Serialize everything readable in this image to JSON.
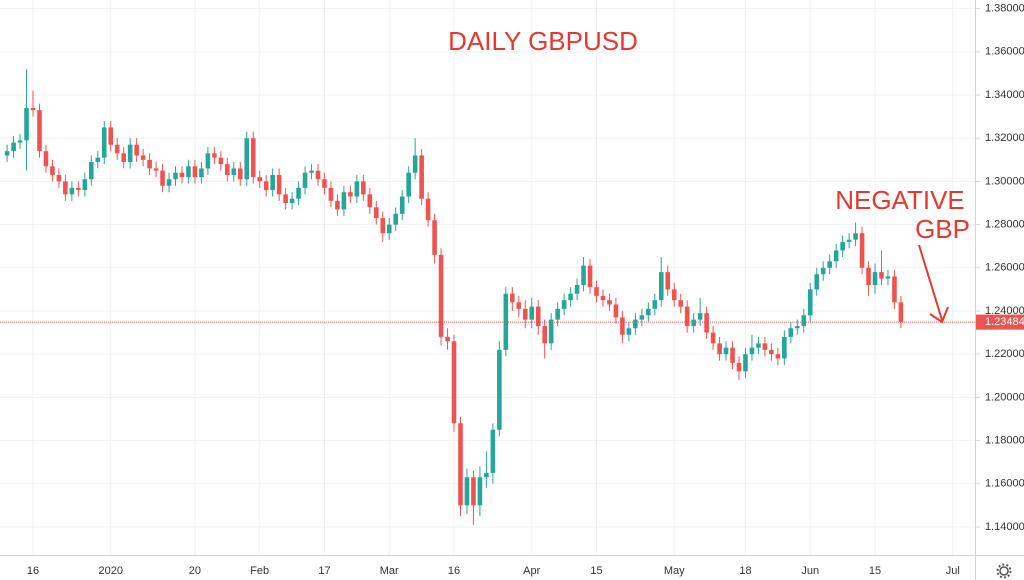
{
  "chart_data": {
    "type": "candlestick",
    "title": "DAILY GBPUSD",
    "annotation": [
      "NEGATIVE",
      "GBP"
    ],
    "up_color": "#26a69a",
    "down_color": "#ef5350",
    "grid": true,
    "ylim": [
      1.127,
      1.384
    ],
    "yticks": [
      {
        "value": 1.14,
        "label": "1.14000"
      },
      {
        "value": 1.16,
        "label": "1.16000"
      },
      {
        "value": 1.18,
        "label": "1.18000"
      },
      {
        "value": 1.2,
        "label": "1.20000"
      },
      {
        "value": 1.22,
        "label": "1.22000"
      },
      {
        "value": 1.24,
        "label": "1.24000"
      },
      {
        "value": 1.26,
        "label": "1.26000"
      },
      {
        "value": 1.28,
        "label": "1.28000"
      },
      {
        "value": 1.3,
        "label": "1.30000"
      },
      {
        "value": 1.32,
        "label": "1.32000"
      },
      {
        "value": 1.34,
        "label": "1.34000"
      },
      {
        "value": 1.36,
        "label": "1.36000"
      },
      {
        "value": 1.38,
        "label": "1.38000"
      }
    ],
    "categories": [
      null,
      null,
      null,
      null,
      "16",
      null,
      null,
      null,
      null,
      null,
      null,
      null,
      null,
      null,
      null,
      null,
      "2020",
      null,
      null,
      null,
      null,
      null,
      null,
      null,
      null,
      null,
      null,
      null,
      null,
      "20",
      null,
      null,
      null,
      null,
      null,
      null,
      null,
      null,
      null,
      "Feb",
      null,
      null,
      null,
      null,
      null,
      null,
      null,
      null,
      null,
      "17",
      null,
      null,
      null,
      null,
      null,
      null,
      null,
      null,
      null,
      "Mar",
      null,
      null,
      null,
      null,
      null,
      null,
      null,
      null,
      null,
      "16",
      null,
      null,
      null,
      null,
      null,
      null,
      null,
      null,
      null,
      null,
      null,
      "Apr",
      null,
      null,
      null,
      null,
      null,
      null,
      null,
      null,
      null,
      "15",
      null,
      null,
      null,
      null,
      null,
      null,
      null,
      null,
      null,
      null,
      null,
      "May",
      null,
      null,
      null,
      null,
      null,
      null,
      null,
      null,
      null,
      null,
      "18",
      null,
      null,
      null,
      null,
      null,
      null,
      null,
      null,
      null,
      "Jun",
      null,
      null,
      null,
      null,
      null,
      null,
      null,
      null,
      null,
      "15",
      null,
      null,
      null,
      null,
      null,
      null,
      null,
      null,
      null,
      null,
      null,
      "Jul"
    ],
    "open": [
      1.312,
      1.314,
      1.318,
      1.319,
      1.334,
      1.333,
      1.314,
      1.307,
      1.303,
      1.3,
      1.294,
      1.297,
      1.296,
      1.301,
      1.309,
      1.311,
      1.325,
      1.317,
      1.313,
      1.309,
      1.317,
      1.312,
      1.31,
      1.306,
      1.305,
      1.298,
      1.301,
      1.304,
      1.302,
      1.307,
      1.302,
      1.306,
      1.313,
      1.311,
      1.308,
      1.303,
      1.306,
      1.301,
      1.32,
      1.302,
      1.3,
      1.296,
      1.303,
      1.294,
      1.29,
      1.292,
      1.297,
      1.304,
      1.305,
      1.301,
      1.297,
      1.291,
      1.287,
      1.295,
      1.293,
      1.3,
      1.294,
      1.288,
      1.283,
      1.276,
      1.28,
      1.285,
      1.293,
      1.304,
      1.312,
      1.292,
      1.282,
      1.266,
      1.228,
      1.226,
      1.188,
      1.15,
      1.163,
      1.15,
      1.163,
      1.165,
      1.185,
      1.222,
      1.248,
      1.244,
      1.241,
      1.236,
      1.242,
      1.233,
      1.225,
      1.236,
      1.241,
      1.245,
      1.248,
      1.252,
      1.261,
      1.251,
      1.247,
      1.245,
      1.243,
      1.237,
      1.229,
      1.232,
      1.236,
      1.238,
      1.241,
      1.245,
      1.258,
      1.25,
      1.245,
      1.242,
      1.233,
      1.236,
      1.239,
      1.23,
      1.225,
      1.22,
      1.223,
      1.216,
      1.212,
      1.22,
      1.223,
      1.225,
      1.222,
      1.22,
      1.218,
      1.228,
      1.232,
      1.233,
      1.238,
      1.25,
      1.257,
      1.26,
      1.263,
      1.268,
      1.272,
      1.273,
      1.276,
      1.26,
      1.252,
      1.258,
      1.255,
      1.256,
      1.244,
      null,
      null,
      null,
      null,
      null,
      null,
      null,
      null
    ],
    "high": [
      1.317,
      1.321,
      1.322,
      1.352,
      1.342,
      1.336,
      1.317,
      1.31,
      1.306,
      1.303,
      1.3,
      1.3,
      1.304,
      1.312,
      1.314,
      1.328,
      1.328,
      1.32,
      1.316,
      1.32,
      1.32,
      1.315,
      1.313,
      1.309,
      1.308,
      1.304,
      1.307,
      1.307,
      1.31,
      1.31,
      1.309,
      1.316,
      1.316,
      1.314,
      1.311,
      1.309,
      1.309,
      1.323,
      1.323,
      1.305,
      1.303,
      1.306,
      1.306,
      1.297,
      1.295,
      1.3,
      1.307,
      1.308,
      1.308,
      1.304,
      1.3,
      1.294,
      1.298,
      1.298,
      1.303,
      1.303,
      1.297,
      1.291,
      1.286,
      1.283,
      1.288,
      1.296,
      1.307,
      1.32,
      1.315,
      1.295,
      1.285,
      1.269,
      1.232,
      1.229,
      1.191,
      1.167,
      1.166,
      1.168,
      1.175,
      1.188,
      1.226,
      1.251,
      1.251,
      1.247,
      1.245,
      1.246,
      1.245,
      1.236,
      1.239,
      1.244,
      1.248,
      1.251,
      1.255,
      1.265,
      1.264,
      1.254,
      1.25,
      1.248,
      1.246,
      1.24,
      1.235,
      1.239,
      1.241,
      1.244,
      1.248,
      1.265,
      1.261,
      1.253,
      1.248,
      1.245,
      1.239,
      1.246,
      1.242,
      1.233,
      1.228,
      1.226,
      1.226,
      1.219,
      1.223,
      1.229,
      1.228,
      1.228,
      1.225,
      1.223,
      1.231,
      1.235,
      1.236,
      1.241,
      1.253,
      1.26,
      1.263,
      1.266,
      1.271,
      1.275,
      1.276,
      1.281,
      1.279,
      1.263,
      1.262,
      1.268,
      1.259,
      1.259,
      1.247,
      null,
      null,
      null,
      null,
      null,
      null,
      null,
      null
    ],
    "low": [
      1.309,
      1.311,
      1.315,
      1.305,
      1.33,
      1.311,
      1.304,
      1.3,
      1.297,
      1.291,
      1.291,
      1.293,
      1.293,
      1.298,
      1.306,
      1.308,
      1.314,
      1.31,
      1.306,
      1.306,
      1.309,
      1.307,
      1.303,
      1.302,
      1.295,
      1.295,
      1.298,
      1.299,
      1.299,
      1.299,
      1.299,
      1.303,
      1.308,
      1.305,
      1.3,
      1.3,
      1.298,
      1.298,
      1.299,
      1.297,
      1.293,
      1.293,
      1.291,
      1.287,
      1.287,
      1.289,
      1.294,
      1.301,
      1.298,
      1.294,
      1.288,
      1.284,
      1.284,
      1.29,
      1.29,
      1.291,
      1.285,
      1.28,
      1.272,
      1.273,
      1.277,
      1.282,
      1.29,
      1.301,
      1.289,
      1.279,
      1.262,
      1.224,
      1.222,
      1.184,
      1.145,
      1.146,
      1.141,
      1.145,
      1.158,
      1.16,
      1.182,
      1.219,
      1.24,
      1.237,
      1.232,
      1.232,
      1.229,
      1.218,
      1.222,
      1.233,
      1.238,
      1.242,
      1.245,
      1.249,
      1.248,
      1.244,
      1.242,
      1.24,
      1.234,
      1.225,
      1.226,
      1.229,
      1.233,
      1.235,
      1.238,
      1.242,
      1.247,
      1.242,
      1.239,
      1.23,
      1.23,
      1.233,
      1.227,
      1.222,
      1.217,
      1.217,
      1.213,
      1.208,
      1.209,
      1.217,
      1.22,
      1.219,
      1.217,
      1.215,
      1.215,
      1.225,
      1.229,
      1.23,
      1.235,
      1.247,
      1.254,
      1.257,
      1.26,
      1.265,
      1.269,
      1.27,
      1.257,
      1.247,
      1.248,
      1.252,
      1.252,
      1.241,
      1.232,
      null,
      null,
      null,
      null,
      null,
      null,
      null,
      null
    ],
    "close": [
      1.314,
      1.318,
      1.319,
      1.334,
      1.333,
      1.314,
      1.307,
      1.303,
      1.3,
      1.294,
      1.297,
      1.296,
      1.301,
      1.309,
      1.311,
      1.325,
      1.317,
      1.313,
      1.309,
      1.317,
      1.312,
      1.31,
      1.306,
      1.305,
      1.298,
      1.301,
      1.304,
      1.302,
      1.307,
      1.302,
      1.306,
      1.313,
      1.311,
      1.308,
      1.303,
      1.306,
      1.301,
      1.32,
      1.302,
      1.3,
      1.296,
      1.303,
      1.294,
      1.29,
      1.292,
      1.297,
      1.304,
      1.305,
      1.301,
      1.297,
      1.291,
      1.287,
      1.295,
      1.293,
      1.3,
      1.294,
      1.288,
      1.283,
      1.276,
      1.28,
      1.285,
      1.293,
      1.304,
      1.312,
      1.292,
      1.282,
      1.266,
      1.228,
      1.226,
      1.188,
      1.15,
      1.163,
      1.15,
      1.163,
      1.165,
      1.185,
      1.222,
      1.248,
      1.244,
      1.241,
      1.236,
      1.242,
      1.233,
      1.225,
      1.236,
      1.241,
      1.245,
      1.248,
      1.252,
      1.261,
      1.251,
      1.247,
      1.245,
      1.243,
      1.237,
      1.229,
      1.232,
      1.236,
      1.238,
      1.241,
      1.245,
      1.258,
      1.25,
      1.245,
      1.242,
      1.233,
      1.236,
      1.239,
      1.23,
      1.225,
      1.22,
      1.223,
      1.216,
      1.212,
      1.22,
      1.223,
      1.225,
      1.222,
      1.22,
      1.218,
      1.228,
      1.232,
      1.233,
      1.238,
      1.25,
      1.257,
      1.26,
      1.263,
      1.268,
      1.272,
      1.273,
      1.276,
      1.26,
      1.252,
      1.258,
      1.255,
      1.256,
      1.244,
      1.23484,
      null,
      null,
      null,
      null,
      null,
      null,
      null,
      null
    ]
  }
}
